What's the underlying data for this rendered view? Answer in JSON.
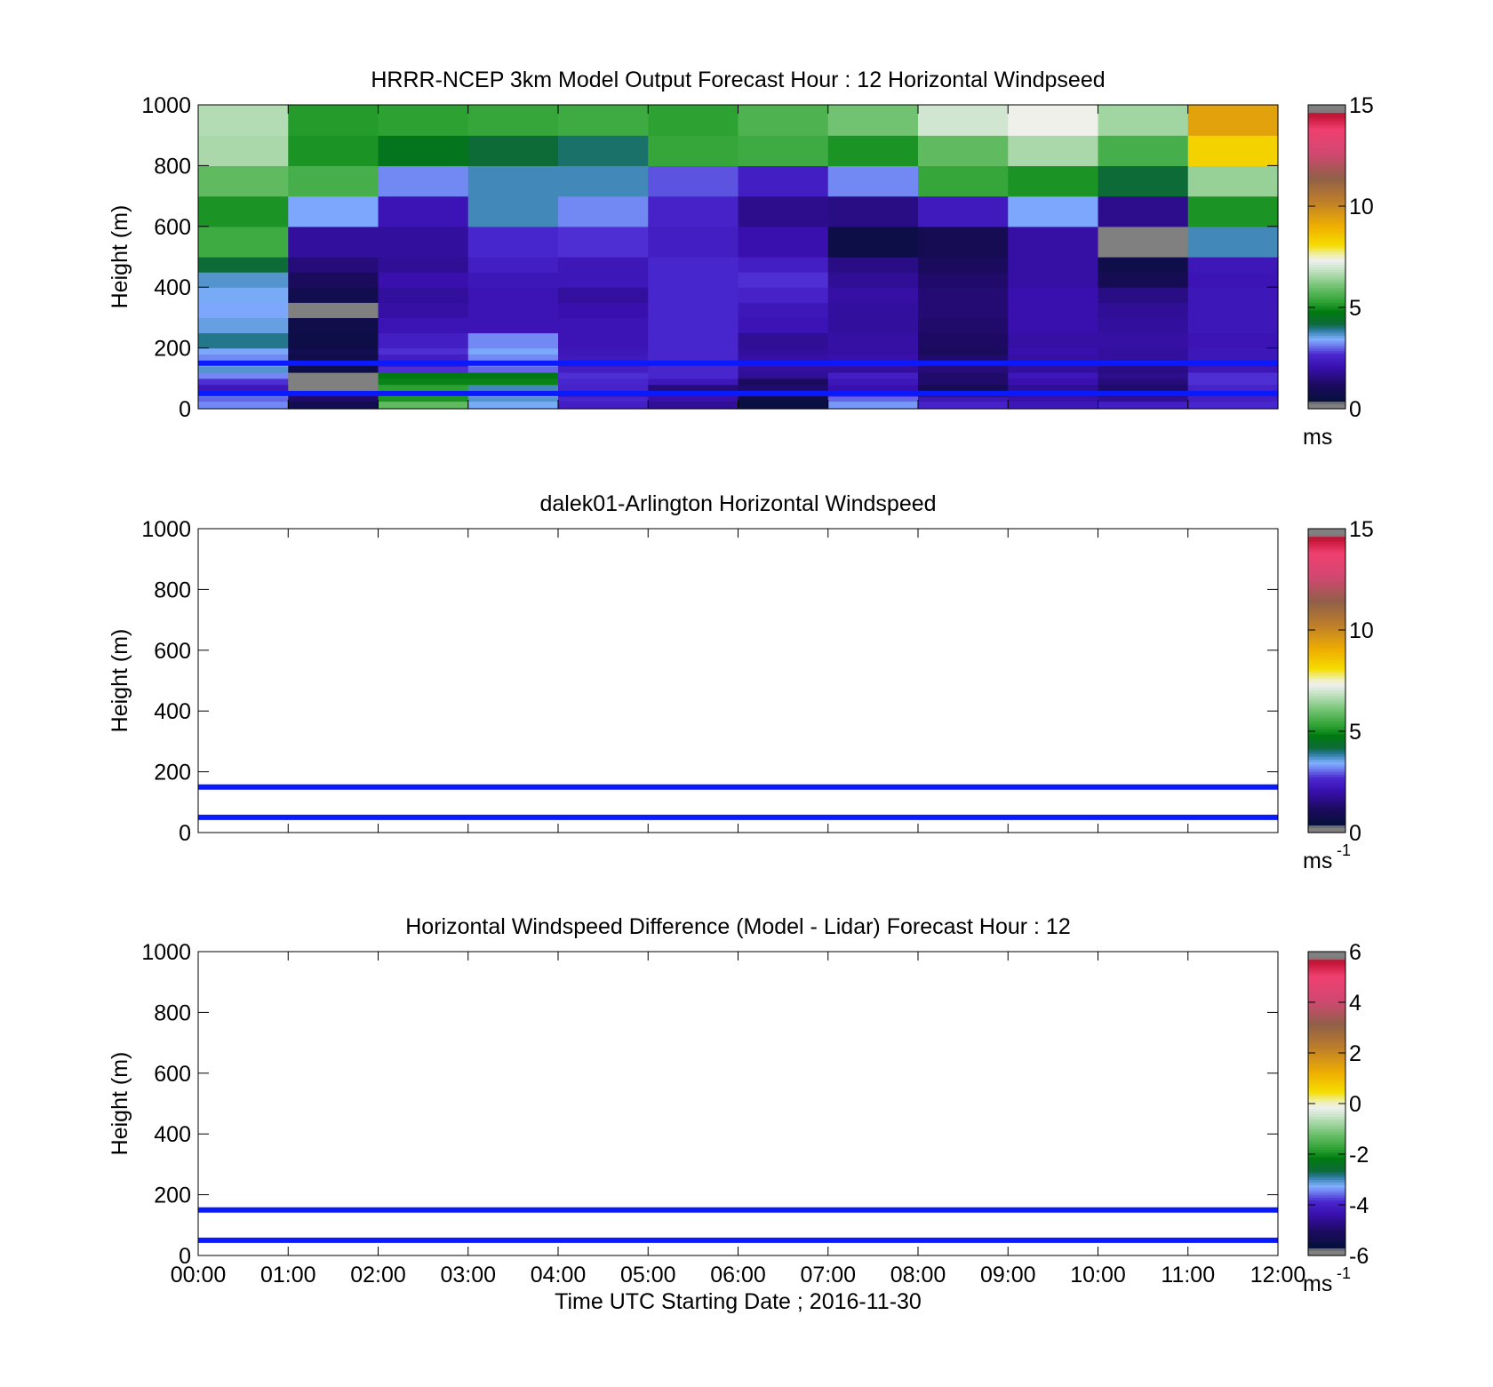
{
  "colors": {
    "ref_lines": "#0a1aff",
    "missing": "#808080",
    "axis": "#000000"
  },
  "chart_data": [
    {
      "type": "heatmap",
      "title": "HRRR-NCEP 3km Model Output   Forecast Hour : 12 Horizontal Windpseed",
      "xlabel": "",
      "ylabel": "Height (m)",
      "ylim": [
        0,
        1000
      ],
      "yticks": [
        "0",
        "200",
        "400",
        "600",
        "800",
        "1000"
      ],
      "xticks": [
        "00:00",
        "01:00",
        "02:00",
        "03:00",
        "04:00",
        "05:00",
        "06:00",
        "07:00",
        "08:00",
        "09:00",
        "10:00",
        "11:00",
        "12:00"
      ],
      "xticks_visible": false,
      "colorbar": {
        "min": 0,
        "max": 15,
        "ticks": [
          "0",
          "5",
          "10",
          "15"
        ],
        "unit": "ms",
        "unit_sup": ""
      },
      "reference_lines_m": [
        50,
        150
      ],
      "cell_bounds_m": [
        0,
        25,
        40,
        60,
        80,
        100,
        120,
        140,
        160,
        180,
        200,
        250,
        300,
        350,
        400,
        450,
        500,
        600,
        700,
        800,
        900,
        1000
      ],
      "speed_grid_ms": [
        [
          3.0,
          0.5,
          5.8,
          3.3,
          2.2,
          1.5,
          0.2,
          3.1,
          2.3,
          2.0,
          2.2,
          2.4
        ],
        [
          2.8,
          1.0,
          5.0,
          3.5,
          2.4,
          1.8,
          0.3,
          2.8,
          2.0,
          1.8,
          1.5,
          2.2
        ],
        [
          3.0,
          1.0,
          5.2,
          3.2,
          2.0,
          1.8,
          0.5,
          2.6,
          1.2,
          1.6,
          1.3,
          2.2
        ],
        [
          2.0,
          -1,
          5.2,
          3.6,
          2.3,
          1.2,
          1.0,
          1.8,
          0.6,
          1.5,
          1.0,
          2.3
        ],
        [
          2.5,
          -1,
          4.8,
          4.8,
          2.4,
          2.0,
          0.8,
          2.0,
          1.0,
          1.8,
          1.2,
          2.5
        ],
        [
          3.0,
          -1,
          4.6,
          4.6,
          2.5,
          2.4,
          1.5,
          2.2,
          1.0,
          2.0,
          1.4,
          2.5
        ],
        [
          3.5,
          0.3,
          2.5,
          2.8,
          2.2,
          2.4,
          1.6,
          1.6,
          1.2,
          1.6,
          1.3,
          2.0
        ],
        [
          3.2,
          0.5,
          2.0,
          3.0,
          2.0,
          2.4,
          1.8,
          1.8,
          1.2,
          1.7,
          1.4,
          1.9
        ],
        [
          3.0,
          0.4,
          2.2,
          3.0,
          2.1,
          2.4,
          1.7,
          1.8,
          1.0,
          1.7,
          1.6,
          2.0
        ],
        [
          3.2,
          0.5,
          2.5,
          3.2,
          2.0,
          2.4,
          1.6,
          1.7,
          0.8,
          1.8,
          1.6,
          2.0
        ],
        [
          3.8,
          0.3,
          2.2,
          3.0,
          1.9,
          2.4,
          1.5,
          1.7,
          0.9,
          1.7,
          1.7,
          1.9
        ],
        [
          3.4,
          0.4,
          1.9,
          1.9,
          1.9,
          2.4,
          1.9,
          1.6,
          1.0,
          1.8,
          1.6,
          2.0
        ],
        [
          3.2,
          -1,
          1.7,
          1.9,
          1.8,
          2.4,
          2.0,
          1.6,
          1.1,
          1.8,
          1.5,
          2.0
        ],
        [
          3.3,
          0.5,
          1.6,
          1.9,
          1.6,
          2.4,
          2.3,
          1.7,
          1.1,
          1.8,
          1.3,
          2.0
        ],
        [
          3.5,
          0.8,
          1.8,
          2.0,
          2.0,
          2.4,
          2.5,
          1.5,
          1.0,
          1.7,
          0.6,
          1.9
        ],
        [
          4.1,
          1.2,
          1.5,
          2.2,
          2.0,
          2.4,
          2.2,
          1.3,
          0.8,
          1.7,
          0.4,
          2.0
        ],
        [
          5.4,
          1.6,
          1.6,
          2.4,
          2.5,
          2.2,
          1.8,
          0.3,
          0.6,
          1.7,
          -1,
          3.6
        ],
        [
          5.0,
          3.2,
          1.9,
          3.6,
          3.0,
          2.3,
          1.4,
          1.3,
          2.1,
          3.2,
          1.4,
          5.0
        ],
        [
          5.8,
          5.5,
          3.0,
          3.6,
          3.6,
          2.7,
          2.2,
          3.0,
          5.3,
          5.0,
          4.1,
          6.4
        ],
        [
          6.6,
          5.0,
          4.5,
          4.1,
          3.9,
          5.3,
          5.4,
          5.0,
          5.8,
          6.6,
          5.5,
          8.4
        ],
        [
          6.7,
          5.1,
          5.2,
          5.3,
          5.4,
          5.2,
          5.6,
          6.0,
          7.0,
          7.4,
          6.5,
          9.5
        ]
      ]
    },
    {
      "type": "heatmap",
      "title": "dalek01-Arlington  Horizontal Windspeed",
      "xlabel": "",
      "ylabel": "Height (m)",
      "ylim": [
        0,
        1000
      ],
      "yticks": [
        "0",
        "200",
        "400",
        "600",
        "800",
        "1000"
      ],
      "xticks": [
        "00:00",
        "01:00",
        "02:00",
        "03:00",
        "04:00",
        "05:00",
        "06:00",
        "07:00",
        "08:00",
        "09:00",
        "10:00",
        "11:00",
        "12:00"
      ],
      "xticks_visible": false,
      "colorbar": {
        "min": 0,
        "max": 15,
        "ticks": [
          "0",
          "5",
          "10",
          "15"
        ],
        "unit": "ms",
        "unit_sup": "-1"
      },
      "reference_lines_m": [
        50,
        150
      ]
    },
    {
      "type": "heatmap",
      "title": "Horizontal Windspeed Difference (Model - Lidar) Forecast Hour : 12",
      "xlabel": "Time UTC  Starting Date ; 2016-11-30",
      "ylabel": "Height (m)",
      "ylim": [
        0,
        1000
      ],
      "yticks": [
        "0",
        "200",
        "400",
        "600",
        "800",
        "1000"
      ],
      "xticks": [
        "00:00",
        "01:00",
        "02:00",
        "03:00",
        "04:00",
        "05:00",
        "06:00",
        "07:00",
        "08:00",
        "09:00",
        "10:00",
        "11:00",
        "12:00"
      ],
      "xticks_visible": true,
      "colorbar": {
        "min": -6,
        "max": 6,
        "ticks": [
          "-6",
          "-4",
          "-2",
          "0",
          "2",
          "4",
          "6"
        ],
        "unit": "ms",
        "unit_sup": "-1"
      },
      "reference_lines_m": [
        50,
        150
      ]
    }
  ]
}
